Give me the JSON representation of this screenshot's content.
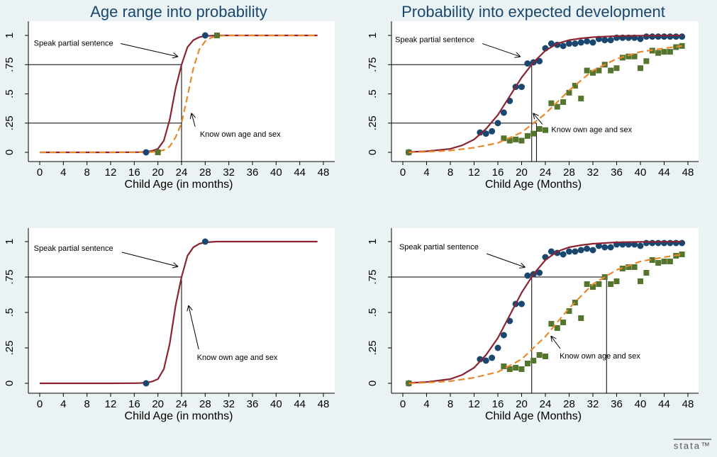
{
  "chart_data": [
    {
      "type": "line",
      "title": "Age range into probability",
      "xlabel": "Child Age (in months)",
      "xlim": [
        0,
        48
      ],
      "ylim": [
        0,
        1
      ],
      "xticks": [
        0,
        4,
        8,
        12,
        16,
        20,
        24,
        28,
        32,
        36,
        40,
        44,
        48
      ],
      "yticks": [
        0,
        {
          "value": 0.25,
          "label": ".25"
        },
        {
          "value": 0.5,
          "label": ".5"
        },
        {
          "value": 0.75,
          "label": ".75"
        },
        1
      ],
      "reference_lines": [
        {
          "x": 24,
          "y": 0.75
        },
        {
          "x": 24,
          "y": 0.25
        }
      ],
      "annotations": [
        "Speak partial sentence",
        "Know own age and sex"
      ],
      "series": [
        {
          "kind": "line",
          "color": "#8b2332",
          "x": [
            0,
            4,
            8,
            12,
            16,
            17,
            18,
            19,
            20,
            21,
            22,
            23,
            24,
            25,
            26,
            27,
            28,
            30,
            32,
            36,
            40,
            44,
            47
          ],
          "values": [
            0,
            0,
            0,
            0,
            0.001,
            0.002,
            0.005,
            0.012,
            0.03,
            0.1,
            0.28,
            0.55,
            0.75,
            0.9,
            0.96,
            0.985,
            0.995,
            1,
            1,
            1,
            1,
            1,
            1
          ]
        },
        {
          "kind": "line",
          "dash": true,
          "color": "#e8892c",
          "x": [
            0,
            4,
            8,
            12,
            16,
            18,
            19,
            20,
            21,
            22,
            23,
            24,
            25,
            26,
            27,
            28,
            29,
            30,
            32,
            36,
            40,
            44,
            47
          ],
          "values": [
            0,
            0,
            0,
            0,
            0,
            0.001,
            0.003,
            0.008,
            0.02,
            0.05,
            0.13,
            0.25,
            0.48,
            0.72,
            0.88,
            0.95,
            0.98,
            0.995,
            1,
            1,
            1,
            1,
            1
          ]
        },
        {
          "kind": "scatter",
          "marker": "circle",
          "color": "#1a476f",
          "x": [
            18,
            28
          ],
          "values": [
            0,
            1
          ]
        },
        {
          "kind": "scatter",
          "marker": "square",
          "color": "#55752f",
          "x": [
            20,
            30
          ],
          "values": [
            0,
            1
          ]
        }
      ]
    },
    {
      "type": "line",
      "title": "Probability into expected development",
      "xlabel": "Child Age (Months)",
      "xlim": [
        0,
        48
      ],
      "ylim": [
        0,
        1
      ],
      "xticks": [
        0,
        4,
        8,
        12,
        16,
        20,
        24,
        28,
        32,
        36,
        40,
        44,
        48
      ],
      "yticks": [
        0,
        {
          "value": 0.25,
          "label": ".25"
        },
        {
          "value": 0.5,
          "label": ".5"
        },
        {
          "value": 0.75,
          "label": ".75"
        },
        1
      ],
      "reference_lines": [
        {
          "x": 21.7,
          "y": 0.75
        },
        {
          "x": 22.5,
          "y": 0.25
        }
      ],
      "annotations": [
        "Speak partial sentence",
        "Know own age and sex"
      ],
      "series": [
        {
          "kind": "scatter",
          "marker": "circle",
          "color": "#1a476f",
          "x": [
            1,
            13,
            14,
            15,
            16,
            17,
            18,
            19,
            20,
            21,
            22,
            23,
            24,
            25,
            26,
            27,
            28,
            29,
            30,
            31,
            32,
            33,
            34,
            35,
            36,
            37,
            38,
            39,
            40,
            41,
            42,
            43,
            44,
            45,
            46,
            47
          ],
          "values": [
            0,
            0.17,
            0.16,
            0.18,
            0.25,
            0.34,
            0.44,
            0.56,
            0.56,
            0.76,
            0.77,
            0.78,
            0.89,
            0.93,
            0.92,
            0.91,
            0.93,
            0.93,
            0.94,
            0.95,
            0.94,
            0.97,
            0.96,
            0.96,
            0.98,
            0.98,
            0.98,
            0.98,
            0.97,
            0.99,
            0.99,
            0.99,
            0.99,
            0.99,
            0.99,
            0.99
          ]
        },
        {
          "kind": "scatter",
          "marker": "square",
          "color": "#55752f",
          "x": [
            1,
            17,
            18,
            19,
            20,
            21,
            22,
            23,
            24,
            25,
            26,
            27,
            28,
            29,
            30,
            31,
            32,
            33,
            34,
            35,
            36,
            37,
            38,
            39,
            40,
            41,
            42,
            43,
            44,
            45,
            46,
            47
          ],
          "values": [
            0,
            0.12,
            0.1,
            0.11,
            0.1,
            0.14,
            0.16,
            0.2,
            0.19,
            0.42,
            0.39,
            0.43,
            0.51,
            0.57,
            0.46,
            0.7,
            0.68,
            0.7,
            0.75,
            0.7,
            0.72,
            0.81,
            0.82,
            0.82,
            0.72,
            0.78,
            0.87,
            0.85,
            0.86,
            0.86,
            0.9,
            0.91
          ]
        },
        {
          "kind": "line",
          "color": "#8b2332",
          "x": [
            1,
            4,
            8,
            10,
            12,
            14,
            16,
            18,
            20,
            22,
            24,
            26,
            28,
            30,
            32,
            36,
            40,
            44,
            47
          ],
          "values": [
            0.003,
            0.009,
            0.03,
            0.06,
            0.11,
            0.2,
            0.32,
            0.48,
            0.64,
            0.77,
            0.87,
            0.93,
            0.96,
            0.975,
            0.985,
            0.995,
            0.998,
            0.999,
            1
          ]
        },
        {
          "kind": "line",
          "dash": true,
          "color": "#e8892c",
          "x": [
            1,
            4,
            8,
            12,
            16,
            20,
            24,
            28,
            32,
            36,
            40,
            44,
            47
          ],
          "values": [
            0,
            0.005,
            0.015,
            0.04,
            0.08,
            0.17,
            0.33,
            0.53,
            0.7,
            0.8,
            0.86,
            0.89,
            0.91
          ]
        }
      ]
    },
    {
      "type": "line",
      "xlabel": "Child Age (in months)",
      "xlim": [
        0,
        48
      ],
      "ylim": [
        0,
        1
      ],
      "xticks": [
        0,
        4,
        8,
        12,
        16,
        20,
        24,
        28,
        32,
        36,
        40,
        44,
        48
      ],
      "yticks": [
        0,
        {
          "value": 0.25,
          "label": ".25"
        },
        {
          "value": 0.5,
          "label": ".5"
        },
        {
          "value": 0.75,
          "label": ".75"
        },
        1
      ],
      "reference_lines": [
        {
          "x": 24,
          "y": 0.75
        }
      ],
      "annotations": [
        "Speak partial sentence",
        "Know own age and sex"
      ],
      "series": [
        {
          "kind": "line",
          "color": "#8b2332",
          "x": [
            0,
            4,
            8,
            12,
            16,
            17,
            18,
            19,
            20,
            21,
            22,
            23,
            24,
            25,
            26,
            27,
            28,
            30,
            32,
            36,
            40,
            44,
            47
          ],
          "values": [
            0,
            0,
            0,
            0,
            0.001,
            0.002,
            0.005,
            0.012,
            0.03,
            0.1,
            0.28,
            0.55,
            0.75,
            0.9,
            0.96,
            0.985,
            0.995,
            1,
            1,
            1,
            1,
            1,
            1
          ]
        },
        {
          "kind": "scatter",
          "marker": "circle",
          "color": "#1a476f",
          "x": [
            18,
            28
          ],
          "values": [
            0,
            1
          ]
        }
      ]
    },
    {
      "type": "line",
      "xlabel": "Child Age (Months)",
      "xlim": [
        0,
        48
      ],
      "ylim": [
        0,
        1
      ],
      "xticks": [
        0,
        4,
        8,
        12,
        16,
        20,
        24,
        28,
        32,
        36,
        40,
        44,
        48
      ],
      "yticks": [
        0,
        {
          "value": 0.25,
          "label": ".25"
        },
        {
          "value": 0.5,
          "label": ".5"
        },
        {
          "value": 0.75,
          "label": ".75"
        },
        1
      ],
      "reference_lines": [
        {
          "x": 21.7,
          "y": 0.75
        },
        {
          "x": 34.3,
          "y": 0.75
        }
      ],
      "annotations": [
        "Speak partial sentence",
        "Know own age and sex"
      ],
      "series": [
        {
          "kind": "scatter",
          "marker": "circle",
          "color": "#1a476f",
          "x": [
            1,
            13,
            14,
            15,
            16,
            17,
            18,
            19,
            20,
            21,
            22,
            23,
            24,
            25,
            26,
            27,
            28,
            29,
            30,
            31,
            32,
            33,
            34,
            35,
            36,
            37,
            38,
            39,
            40,
            41,
            42,
            43,
            44,
            45,
            46,
            47
          ],
          "values": [
            0,
            0.17,
            0.16,
            0.18,
            0.25,
            0.34,
            0.44,
            0.56,
            0.56,
            0.76,
            0.77,
            0.78,
            0.89,
            0.93,
            0.92,
            0.91,
            0.93,
            0.93,
            0.94,
            0.95,
            0.94,
            0.97,
            0.96,
            0.96,
            0.98,
            0.98,
            0.98,
            0.98,
            0.97,
            0.99,
            0.99,
            0.99,
            0.99,
            0.99,
            0.99,
            0.99
          ]
        },
        {
          "kind": "scatter",
          "marker": "square",
          "color": "#55752f",
          "x": [
            1,
            17,
            18,
            19,
            20,
            21,
            22,
            23,
            24,
            25,
            26,
            27,
            28,
            29,
            30,
            31,
            32,
            33,
            34,
            35,
            36,
            37,
            38,
            39,
            40,
            41,
            42,
            43,
            44,
            45,
            46,
            47
          ],
          "values": [
            0,
            0.12,
            0.1,
            0.11,
            0.1,
            0.14,
            0.16,
            0.2,
            0.19,
            0.42,
            0.39,
            0.43,
            0.51,
            0.57,
            0.46,
            0.7,
            0.68,
            0.7,
            0.75,
            0.7,
            0.72,
            0.81,
            0.82,
            0.82,
            0.72,
            0.78,
            0.87,
            0.85,
            0.86,
            0.86,
            0.9,
            0.91
          ]
        },
        {
          "kind": "line",
          "color": "#8b2332",
          "x": [
            1,
            4,
            8,
            10,
            12,
            14,
            16,
            18,
            20,
            22,
            24,
            26,
            28,
            30,
            32,
            36,
            40,
            44,
            47
          ],
          "values": [
            0.003,
            0.009,
            0.03,
            0.06,
            0.11,
            0.2,
            0.32,
            0.48,
            0.64,
            0.77,
            0.87,
            0.93,
            0.96,
            0.975,
            0.985,
            0.995,
            0.998,
            0.999,
            1
          ]
        },
        {
          "kind": "line",
          "dash": true,
          "color": "#e8892c",
          "x": [
            1,
            4,
            8,
            12,
            16,
            20,
            24,
            28,
            32,
            36,
            40,
            44,
            47
          ],
          "values": [
            0,
            0.005,
            0.015,
            0.04,
            0.08,
            0.17,
            0.33,
            0.53,
            0.7,
            0.8,
            0.86,
            0.89,
            0.91
          ]
        }
      ]
    }
  ],
  "logo": "stata™"
}
